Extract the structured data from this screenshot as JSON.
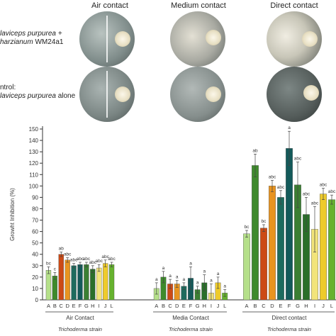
{
  "figure": {
    "columns": [
      "Air contact",
      "Medium contact",
      "Direct contact"
    ],
    "rows": [
      {
        "line1": "laviceps purpurea +",
        "line2_italic": "harzianum",
        "line2_rest": " WM24a1"
      },
      {
        "line1": "ntrol:",
        "line2_italic": "laviceps purpurea",
        "line2_rest": " alone"
      }
    ]
  },
  "chart_data": {
    "type": "bar",
    "ylabel": "Growht Inhibition (%)",
    "ylim": [
      0,
      150
    ],
    "yticks": [
      0,
      10,
      20,
      30,
      40,
      50,
      60,
      70,
      80,
      90,
      100,
      110,
      120,
      130,
      140,
      150
    ],
    "categories": [
      "A",
      "B",
      "C",
      "D",
      "E",
      "F",
      "G",
      "H",
      "I",
      "J",
      "L"
    ],
    "xlabel": "Trichoderma strain",
    "bar_colors": [
      "#b5e08a",
      "#3e8a2c",
      "#cc4a16",
      "#e89420",
      "#1d6b5e",
      "#135a5a",
      "#3b7f33",
      "#2a6f2a",
      "#f2e47a",
      "#eecb2c",
      "#66b22e"
    ],
    "groups": [
      {
        "name": "Air Contact",
        "values": [
          26,
          21,
          40,
          35,
          30,
          31,
          31,
          27,
          28,
          32,
          31
        ],
        "errors": [
          3,
          3,
          2,
          2,
          2,
          2,
          2,
          3,
          3,
          3,
          2
        ],
        "labels": [
          "bc",
          "c",
          "ab",
          "abc",
          "abc",
          "abc",
          "abc",
          "abc",
          "abc",
          "abc",
          "abc"
        ]
      },
      {
        "name": "Media Contact",
        "values": [
          10,
          20,
          14,
          14,
          12,
          19,
          9,
          15,
          6,
          15,
          6
        ],
        "errors": [
          5,
          5,
          4,
          3,
          3,
          10,
          3,
          7,
          8,
          5,
          3
        ],
        "labels": [
          "a",
          "a",
          "a",
          "a",
          "a",
          "a",
          "a",
          "a",
          "a",
          "a",
          "a"
        ]
      },
      {
        "name": "Direct contact",
        "values": [
          58,
          118,
          63,
          100,
          90,
          133,
          101,
          75,
          62,
          93,
          88
        ],
        "errors": [
          3,
          10,
          3,
          5,
          6,
          15,
          20,
          15,
          20,
          5,
          4
        ],
        "labels": [
          "bc",
          "ab",
          "bc",
          "abc",
          "abc",
          "a",
          "abc",
          "abc",
          "abc",
          "abc",
          "abc"
        ]
      }
    ]
  }
}
